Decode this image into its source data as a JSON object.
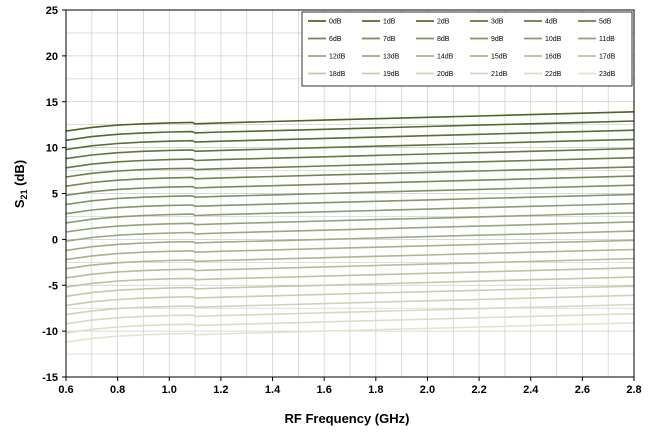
{
  "chart_data": {
    "type": "line",
    "title": "",
    "xlabel": "RF Frequency (GHz)",
    "ylabel_main": "S",
    "ylabel_sub": "21",
    "ylabel_unit": " (dB)",
    "xlim": [
      0.6,
      2.8
    ],
    "ylim": [
      -15,
      25
    ],
    "x_ticks": [
      0.6,
      0.8,
      1.0,
      1.2,
      1.4,
      1.6,
      1.8,
      2.0,
      2.2,
      2.4,
      2.6,
      2.8
    ],
    "x_tick_labels": [
      "0.6",
      "0.8",
      "1.0",
      "1.2",
      "1.4",
      "1.6",
      "1.8",
      "2.0",
      "2.2",
      "2.4",
      "2.6",
      "2.8"
    ],
    "y_ticks": [
      -15,
      -10,
      -5,
      0,
      5,
      10,
      15,
      20,
      25
    ],
    "y_tick_labels": [
      "-15",
      "-10",
      "-5",
      "0",
      "5",
      "10",
      "15",
      "20",
      "25"
    ],
    "grid": true,
    "legend_position": "top-right",
    "x": [
      0.6,
      0.7,
      0.8,
      0.9,
      1.0,
      1.09,
      1.1,
      1.2,
      1.4,
      1.6,
      1.8,
      2.0,
      2.2,
      2.4,
      2.6,
      2.8
    ],
    "series": [
      {
        "name": "0dB",
        "values": [
          11.8,
          12.2,
          12.45,
          12.6,
          12.7,
          12.75,
          12.6,
          12.7,
          12.85,
          13.0,
          13.15,
          13.3,
          13.45,
          13.6,
          13.75,
          13.9
        ]
      },
      {
        "name": "1dB",
        "values": [
          10.8,
          11.2,
          11.45,
          11.6,
          11.7,
          11.75,
          11.6,
          11.7,
          11.85,
          12.0,
          12.15,
          12.3,
          12.45,
          12.6,
          12.75,
          12.9
        ]
      },
      {
        "name": "2dB",
        "values": [
          9.8,
          10.2,
          10.45,
          10.6,
          10.7,
          10.75,
          10.6,
          10.7,
          10.85,
          11.0,
          11.15,
          11.3,
          11.45,
          11.6,
          11.75,
          11.9
        ]
      },
      {
        "name": "3dB",
        "values": [
          8.8,
          9.2,
          9.45,
          9.6,
          9.7,
          9.75,
          9.6,
          9.7,
          9.85,
          10.0,
          10.15,
          10.3,
          10.45,
          10.6,
          10.75,
          10.9
        ]
      },
      {
        "name": "4dB",
        "values": [
          7.8,
          8.2,
          8.45,
          8.6,
          8.7,
          8.75,
          8.6,
          8.7,
          8.85,
          9.0,
          9.15,
          9.3,
          9.45,
          9.6,
          9.75,
          9.9
        ]
      },
      {
        "name": "5dB",
        "values": [
          6.8,
          7.2,
          7.45,
          7.6,
          7.7,
          7.75,
          7.6,
          7.7,
          7.85,
          8.0,
          8.15,
          8.3,
          8.45,
          8.6,
          8.75,
          8.9
        ]
      },
      {
        "name": "6dB",
        "values": [
          5.8,
          6.2,
          6.45,
          6.6,
          6.7,
          6.75,
          6.6,
          6.7,
          6.85,
          7.0,
          7.15,
          7.3,
          7.45,
          7.6,
          7.75,
          7.9
        ]
      },
      {
        "name": "7dB",
        "values": [
          4.8,
          5.2,
          5.45,
          5.6,
          5.7,
          5.75,
          5.6,
          5.7,
          5.85,
          6.0,
          6.15,
          6.3,
          6.45,
          6.6,
          6.75,
          6.9
        ]
      },
      {
        "name": "8dB",
        "values": [
          3.8,
          4.2,
          4.45,
          4.6,
          4.7,
          4.75,
          4.6,
          4.7,
          4.85,
          5.0,
          5.15,
          5.3,
          5.45,
          5.6,
          5.75,
          5.9
        ]
      },
      {
        "name": "9dB",
        "values": [
          2.8,
          3.2,
          3.45,
          3.6,
          3.7,
          3.75,
          3.6,
          3.7,
          3.85,
          4.0,
          4.15,
          4.3,
          4.45,
          4.6,
          4.75,
          4.9
        ]
      },
      {
        "name": "10dB",
        "values": [
          1.8,
          2.2,
          2.45,
          2.6,
          2.7,
          2.75,
          2.6,
          2.7,
          2.85,
          3.0,
          3.15,
          3.3,
          3.45,
          3.6,
          3.75,
          3.9
        ]
      },
      {
        "name": "11dB",
        "values": [
          0.8,
          1.2,
          1.45,
          1.6,
          1.7,
          1.75,
          1.6,
          1.7,
          1.85,
          2.0,
          2.15,
          2.3,
          2.45,
          2.6,
          2.75,
          2.9
        ]
      },
      {
        "name": "12dB",
        "values": [
          -0.2,
          0.2,
          0.45,
          0.6,
          0.7,
          0.75,
          0.6,
          0.7,
          0.85,
          1.0,
          1.15,
          1.3,
          1.45,
          1.6,
          1.75,
          1.9
        ]
      },
      {
        "name": "13dB",
        "values": [
          -1.2,
          -0.8,
          -0.55,
          -0.4,
          -0.3,
          -0.25,
          -0.4,
          -0.3,
          -0.15,
          0.0,
          0.15,
          0.3,
          0.45,
          0.6,
          0.75,
          0.9
        ]
      },
      {
        "name": "14dB",
        "values": [
          -2.2,
          -1.8,
          -1.55,
          -1.4,
          -1.3,
          -1.25,
          -1.4,
          -1.3,
          -1.15,
          -1.0,
          -0.85,
          -0.7,
          -0.55,
          -0.4,
          -0.25,
          -0.1
        ]
      },
      {
        "name": "15dB",
        "values": [
          -3.2,
          -2.8,
          -2.55,
          -2.4,
          -2.3,
          -2.25,
          -2.4,
          -2.3,
          -2.15,
          -2.0,
          -1.85,
          -1.7,
          -1.55,
          -1.4,
          -1.25,
          -1.1
        ]
      },
      {
        "name": "16dB",
        "values": [
          -4.2,
          -3.8,
          -3.55,
          -3.4,
          -3.3,
          -3.25,
          -3.4,
          -3.3,
          -3.15,
          -3.0,
          -2.85,
          -2.7,
          -2.55,
          -2.4,
          -2.25,
          -2.1
        ]
      },
      {
        "name": "17dB",
        "values": [
          -5.2,
          -4.8,
          -4.55,
          -4.4,
          -4.3,
          -4.25,
          -4.4,
          -4.3,
          -4.15,
          -4.0,
          -3.85,
          -3.7,
          -3.55,
          -3.4,
          -3.25,
          -3.1
        ]
      },
      {
        "name": "18dB",
        "values": [
          -6.2,
          -5.8,
          -5.55,
          -5.4,
          -5.3,
          -5.25,
          -5.4,
          -5.3,
          -5.15,
          -5.0,
          -4.85,
          -4.7,
          -4.55,
          -4.4,
          -4.25,
          -4.1
        ]
      },
      {
        "name": "19dB",
        "values": [
          -7.2,
          -6.8,
          -6.55,
          -6.4,
          -6.3,
          -6.25,
          -6.4,
          -6.3,
          -6.15,
          -6.0,
          -5.85,
          -5.7,
          -5.55,
          -5.4,
          -5.25,
          -5.1
        ]
      },
      {
        "name": "20dB",
        "values": [
          -8.2,
          -7.8,
          -7.55,
          -7.4,
          -7.3,
          -7.25,
          -7.4,
          -7.3,
          -7.15,
          -7.0,
          -6.85,
          -6.7,
          -6.55,
          -6.4,
          -6.25,
          -6.1
        ]
      },
      {
        "name": "21dB",
        "values": [
          -9.2,
          -8.8,
          -8.55,
          -8.4,
          -8.3,
          -8.25,
          -8.4,
          -8.3,
          -8.15,
          -8.0,
          -7.85,
          -7.7,
          -7.55,
          -7.4,
          -7.25,
          -7.1
        ]
      },
      {
        "name": "22dB",
        "values": [
          -10.2,
          -9.8,
          -9.55,
          -9.4,
          -9.3,
          -9.25,
          -9.4,
          -9.3,
          -9.15,
          -9.0,
          -8.85,
          -8.7,
          -8.55,
          -8.4,
          -8.25,
          -8.1
        ]
      },
      {
        "name": "23dB",
        "values": [
          -11.2,
          -10.8,
          -10.55,
          -10.4,
          -10.3,
          -10.25,
          -10.4,
          -10.3,
          -10.15,
          -10.0,
          -9.85,
          -9.7,
          -9.55,
          -9.4,
          -9.25,
          -9.1
        ]
      }
    ],
    "colors": {
      "series_dark": "#4a6621",
      "series_light": "#dfe6cd",
      "grid": "#cccccc",
      "axis": "#000000",
      "legend_border": "#000000"
    }
  }
}
